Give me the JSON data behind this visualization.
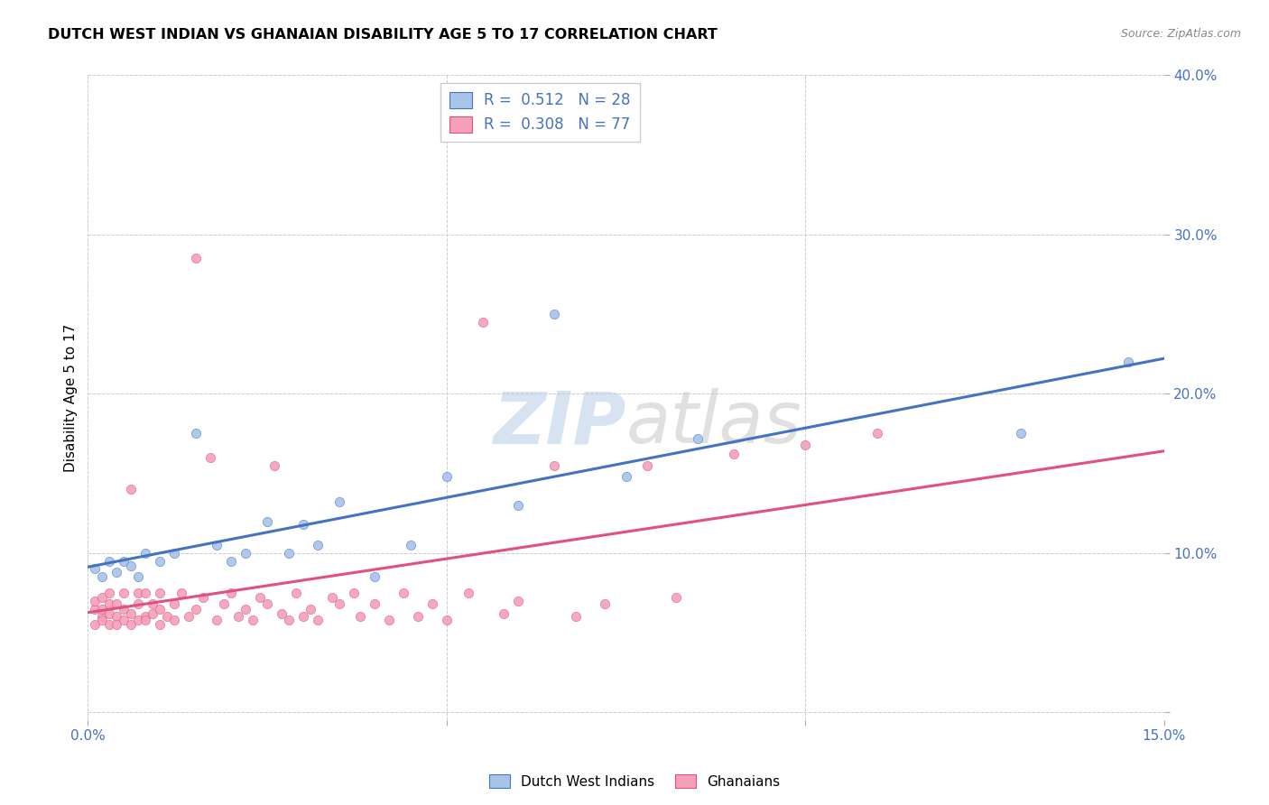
{
  "title": "DUTCH WEST INDIAN VS GHANAIAN DISABILITY AGE 5 TO 17 CORRELATION CHART",
  "source": "Source: ZipAtlas.com",
  "ylabel": "Disability Age 5 to 17",
  "xlim": [
    0.0,
    0.15
  ],
  "ylim": [
    -0.005,
    0.4
  ],
  "blue_label": "Dutch West Indians",
  "pink_label": "Ghanaians",
  "blue_R": 0.512,
  "blue_N": 28,
  "pink_R": 0.308,
  "pink_N": 77,
  "blue_color": "#a8c4e8",
  "pink_color": "#f4a0b8",
  "blue_line_color": "#4472c4",
  "pink_line_color": "#e05080",
  "blue_scatter_x": [
    0.001,
    0.002,
    0.003,
    0.004,
    0.005,
    0.006,
    0.007,
    0.008,
    0.01,
    0.012,
    0.015,
    0.018,
    0.02,
    0.022,
    0.025,
    0.028,
    0.03,
    0.032,
    0.035,
    0.04,
    0.045,
    0.05,
    0.06,
    0.065,
    0.075,
    0.085,
    0.13,
    0.145
  ],
  "blue_scatter_y": [
    0.09,
    0.085,
    0.095,
    0.088,
    0.095,
    0.092,
    0.085,
    0.1,
    0.095,
    0.1,
    0.175,
    0.105,
    0.095,
    0.1,
    0.12,
    0.1,
    0.118,
    0.105,
    0.132,
    0.085,
    0.105,
    0.148,
    0.13,
    0.25,
    0.148,
    0.172,
    0.175,
    0.22
  ],
  "pink_scatter_x": [
    0.001,
    0.001,
    0.001,
    0.002,
    0.002,
    0.002,
    0.002,
    0.003,
    0.003,
    0.003,
    0.003,
    0.004,
    0.004,
    0.004,
    0.005,
    0.005,
    0.005,
    0.006,
    0.006,
    0.006,
    0.007,
    0.007,
    0.007,
    0.008,
    0.008,
    0.008,
    0.009,
    0.009,
    0.01,
    0.01,
    0.01,
    0.011,
    0.012,
    0.012,
    0.013,
    0.014,
    0.015,
    0.015,
    0.016,
    0.017,
    0.018,
    0.019,
    0.02,
    0.021,
    0.022,
    0.023,
    0.024,
    0.025,
    0.026,
    0.027,
    0.028,
    0.029,
    0.03,
    0.031,
    0.032,
    0.034,
    0.035,
    0.037,
    0.038,
    0.04,
    0.042,
    0.044,
    0.046,
    0.048,
    0.05,
    0.053,
    0.055,
    0.058,
    0.06,
    0.065,
    0.068,
    0.072,
    0.078,
    0.082,
    0.09,
    0.1,
    0.11
  ],
  "pink_scatter_y": [
    0.065,
    0.055,
    0.07,
    0.06,
    0.065,
    0.072,
    0.058,
    0.062,
    0.068,
    0.055,
    0.075,
    0.06,
    0.068,
    0.055,
    0.065,
    0.058,
    0.075,
    0.055,
    0.14,
    0.062,
    0.058,
    0.068,
    0.075,
    0.06,
    0.075,
    0.058,
    0.062,
    0.068,
    0.055,
    0.065,
    0.075,
    0.06,
    0.058,
    0.068,
    0.075,
    0.06,
    0.065,
    0.285,
    0.072,
    0.16,
    0.058,
    0.068,
    0.075,
    0.06,
    0.065,
    0.058,
    0.072,
    0.068,
    0.155,
    0.062,
    0.058,
    0.075,
    0.06,
    0.065,
    0.058,
    0.072,
    0.068,
    0.075,
    0.06,
    0.068,
    0.058,
    0.075,
    0.06,
    0.068,
    0.058,
    0.075,
    0.245,
    0.062,
    0.07,
    0.155,
    0.06,
    0.068,
    0.155,
    0.072,
    0.162,
    0.168,
    0.175
  ]
}
